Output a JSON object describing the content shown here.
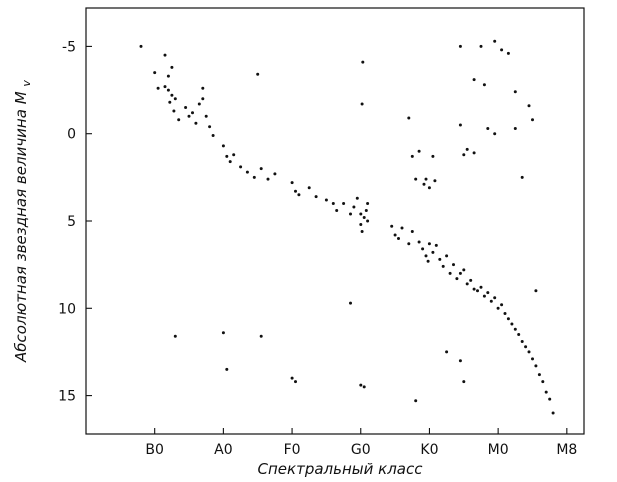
{
  "chart_data": {
    "type": "scatter",
    "xlabel": "Спектральный класс",
    "ylabel": "Абсолютная звездная величина",
    "ylabel_symbol": "M",
    "ylabel_subscript": "v",
    "x_categories": [
      "B0",
      "A0",
      "F0",
      "G0",
      "K0",
      "M0",
      "M8"
    ],
    "y_ticks": [
      -5,
      0,
      5,
      10,
      15
    ],
    "y_tick_labels": [
      "-5",
      "0",
      "5",
      "10",
      "15"
    ],
    "ylim": [
      17.2,
      -7.2
    ],
    "x_index_range": [
      -1.0,
      6.25
    ],
    "grid": false,
    "legend": "none",
    "points": [
      [
        -0.2,
        -5.0
      ],
      [
        0.15,
        -4.5
      ],
      [
        0.25,
        -3.8
      ],
      [
        0.2,
        -3.3
      ],
      [
        0.15,
        -2.7
      ],
      [
        0.2,
        -2.5
      ],
      [
        0.25,
        -2.2
      ],
      [
        0.3,
        -2.0
      ],
      [
        0.22,
        -1.8
      ],
      [
        0.28,
        -1.3
      ],
      [
        0.35,
        -0.8
      ],
      [
        0.45,
        -1.5
      ],
      [
        0.5,
        -1.0
      ],
      [
        0.55,
        -1.2
      ],
      [
        0.6,
        -0.6
      ],
      [
        0.65,
        -1.7
      ],
      [
        0.7,
        -2.0
      ],
      [
        0.75,
        -1.0
      ],
      [
        0.8,
        -0.4
      ],
      [
        0.85,
        0.1
      ],
      [
        0.7,
        -2.6
      ],
      [
        0.0,
        -3.5
      ],
      [
        0.05,
        -2.6
      ],
      [
        1.0,
        0.7
      ],
      [
        1.05,
        1.3
      ],
      [
        1.1,
        1.6
      ],
      [
        1.15,
        1.2
      ],
      [
        1.25,
        1.9
      ],
      [
        1.35,
        2.2
      ],
      [
        1.45,
        2.5
      ],
      [
        1.55,
        2.0
      ],
      [
        1.65,
        2.6
      ],
      [
        1.75,
        2.3
      ],
      [
        1.5,
        -3.4
      ],
      [
        2.0,
        2.8
      ],
      [
        2.05,
        3.3
      ],
      [
        2.1,
        3.5
      ],
      [
        2.25,
        3.1
      ],
      [
        2.35,
        3.6
      ],
      [
        2.5,
        3.8
      ],
      [
        2.6,
        4.0
      ],
      [
        2.65,
        4.4
      ],
      [
        2.75,
        4.0
      ],
      [
        2.85,
        4.6
      ],
      [
        2.9,
        4.2
      ],
      [
        2.95,
        3.7
      ],
      [
        3.0,
        4.6
      ],
      [
        3.05,
        4.8
      ],
      [
        3.1,
        5.0
      ],
      [
        3.0,
        5.2
      ],
      [
        3.08,
        4.4
      ],
      [
        3.02,
        5.6
      ],
      [
        3.1,
        4.0
      ],
      [
        3.03,
        -4.1
      ],
      [
        3.02,
        -1.7
      ],
      [
        2.85,
        9.7
      ],
      [
        3.45,
        5.3
      ],
      [
        3.5,
        5.8
      ],
      [
        3.55,
        6.0
      ],
      [
        3.6,
        5.4
      ],
      [
        3.7,
        6.3
      ],
      [
        3.75,
        5.6
      ],
      [
        3.85,
        6.2
      ],
      [
        3.9,
        6.6
      ],
      [
        3.95,
        7.0
      ],
      [
        4.0,
        6.3
      ],
      [
        4.05,
        6.8
      ],
      [
        4.1,
        6.4
      ],
      [
        3.98,
        7.3
      ],
      [
        3.7,
        -0.9
      ],
      [
        3.75,
        1.3
      ],
      [
        3.8,
        2.6
      ],
      [
        3.85,
        1.0
      ],
      [
        3.95,
        2.6
      ],
      [
        4.0,
        3.1
      ],
      [
        4.05,
        1.3
      ],
      [
        4.08,
        2.7
      ],
      [
        3.92,
        2.9
      ],
      [
        4.15,
        7.2
      ],
      [
        4.2,
        7.6
      ],
      [
        4.25,
        7.0
      ],
      [
        4.3,
        8.0
      ],
      [
        4.35,
        7.5
      ],
      [
        4.4,
        8.3
      ],
      [
        4.45,
        8.0
      ],
      [
        4.5,
        7.8
      ],
      [
        4.55,
        8.6
      ],
      [
        4.6,
        8.4
      ],
      [
        4.65,
        8.9
      ],
      [
        4.7,
        9.0
      ],
      [
        4.75,
        8.8
      ],
      [
        4.8,
        9.3
      ],
      [
        4.85,
        9.1
      ],
      [
        4.9,
        9.6
      ],
      [
        4.95,
        9.4
      ],
      [
        5.0,
        10.0
      ],
      [
        5.05,
        9.8
      ],
      [
        5.1,
        10.3
      ],
      [
        5.15,
        10.6
      ],
      [
        5.2,
        10.9
      ],
      [
        5.25,
        11.2
      ],
      [
        5.3,
        11.5
      ],
      [
        5.35,
        11.9
      ],
      [
        5.4,
        12.2
      ],
      [
        5.45,
        12.5
      ],
      [
        5.5,
        12.9
      ],
      [
        5.55,
        13.3
      ],
      [
        5.6,
        13.8
      ],
      [
        5.65,
        14.2
      ],
      [
        5.7,
        14.8
      ],
      [
        5.75,
        15.2
      ],
      [
        5.8,
        16.0
      ],
      [
        4.45,
        -5.0
      ],
      [
        4.75,
        -5.0
      ],
      [
        4.95,
        -5.3
      ],
      [
        5.05,
        -4.8
      ],
      [
        5.15,
        -4.6
      ],
      [
        4.65,
        -3.1
      ],
      [
        4.8,
        -2.8
      ],
      [
        5.25,
        -2.4
      ],
      [
        5.45,
        -1.6
      ],
      [
        5.5,
        -0.8
      ],
      [
        5.25,
        -0.3
      ],
      [
        4.95,
        0.0
      ],
      [
        4.85,
        -0.3
      ],
      [
        4.45,
        -0.5
      ],
      [
        4.55,
        0.9
      ],
      [
        4.65,
        1.1
      ],
      [
        4.5,
        1.2
      ],
      [
        5.35,
        2.5
      ],
      [
        0.3,
        11.6
      ],
      [
        1.0,
        11.4
      ],
      [
        1.05,
        13.5
      ],
      [
        1.55,
        11.6
      ],
      [
        2.0,
        14.0
      ],
      [
        2.05,
        14.2
      ],
      [
        3.0,
        14.4
      ],
      [
        3.05,
        14.5
      ],
      [
        3.8,
        15.3
      ],
      [
        4.25,
        12.5
      ],
      [
        4.45,
        13.0
      ],
      [
        4.5,
        14.2
      ],
      [
        5.55,
        9.0
      ]
    ]
  }
}
